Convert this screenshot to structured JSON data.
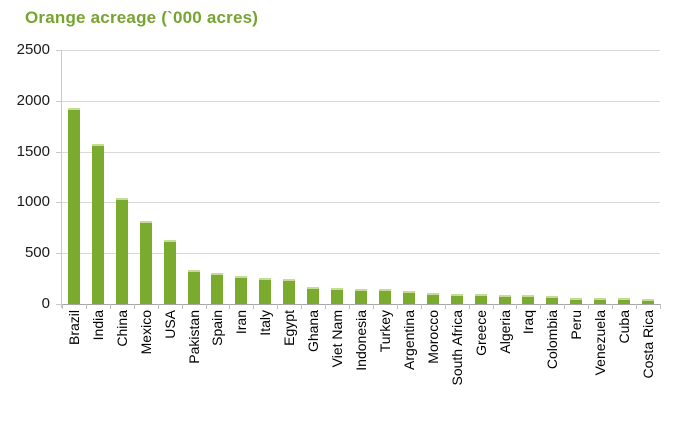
{
  "title": "Orange acreage (`000 acres)",
  "colors": {
    "title_green": "#76a52f",
    "bar_green": "#7bab2e",
    "bar_cap_green": "#c6dc96",
    "gridline_gray": "#d9d9d9",
    "axis_gray": "#a6a6a6",
    "tick_gray": "#bfbfbf",
    "label_black": "#1a1a1a"
  },
  "chart_data": {
    "type": "bar",
    "title": "Orange acreage (`000 acres)",
    "categories": [
      "Brazil",
      "India",
      "China",
      "Mexico",
      "USA",
      "Pakistan",
      "Spain",
      "Iran",
      "Italy",
      "Egypt",
      "Ghana",
      "Viet Nam",
      "Indonesia",
      "Turkey",
      "Argentina",
      "Morocco",
      "South Africa",
      "Greece",
      "Algeria",
      "Iraq",
      "Colombia",
      "Peru",
      "Venezuela",
      "Cuba",
      "Costa Rica"
    ],
    "values": [
      1930,
      1570,
      1040,
      820,
      630,
      335,
      310,
      280,
      255,
      245,
      165,
      155,
      148,
      145,
      128,
      112,
      102,
      98,
      90,
      88,
      74,
      63,
      59,
      55,
      53
    ],
    "xlabel": "",
    "ylabel": "",
    "ylim": [
      0,
      2500
    ],
    "ytick_step": 500,
    "ytick_labels": [
      "0",
      "500",
      "1000",
      "1500",
      "2000",
      "2500"
    ],
    "grid": true,
    "legend": false,
    "bar_orientation": "vertical",
    "x_label_rotation": -90
  }
}
